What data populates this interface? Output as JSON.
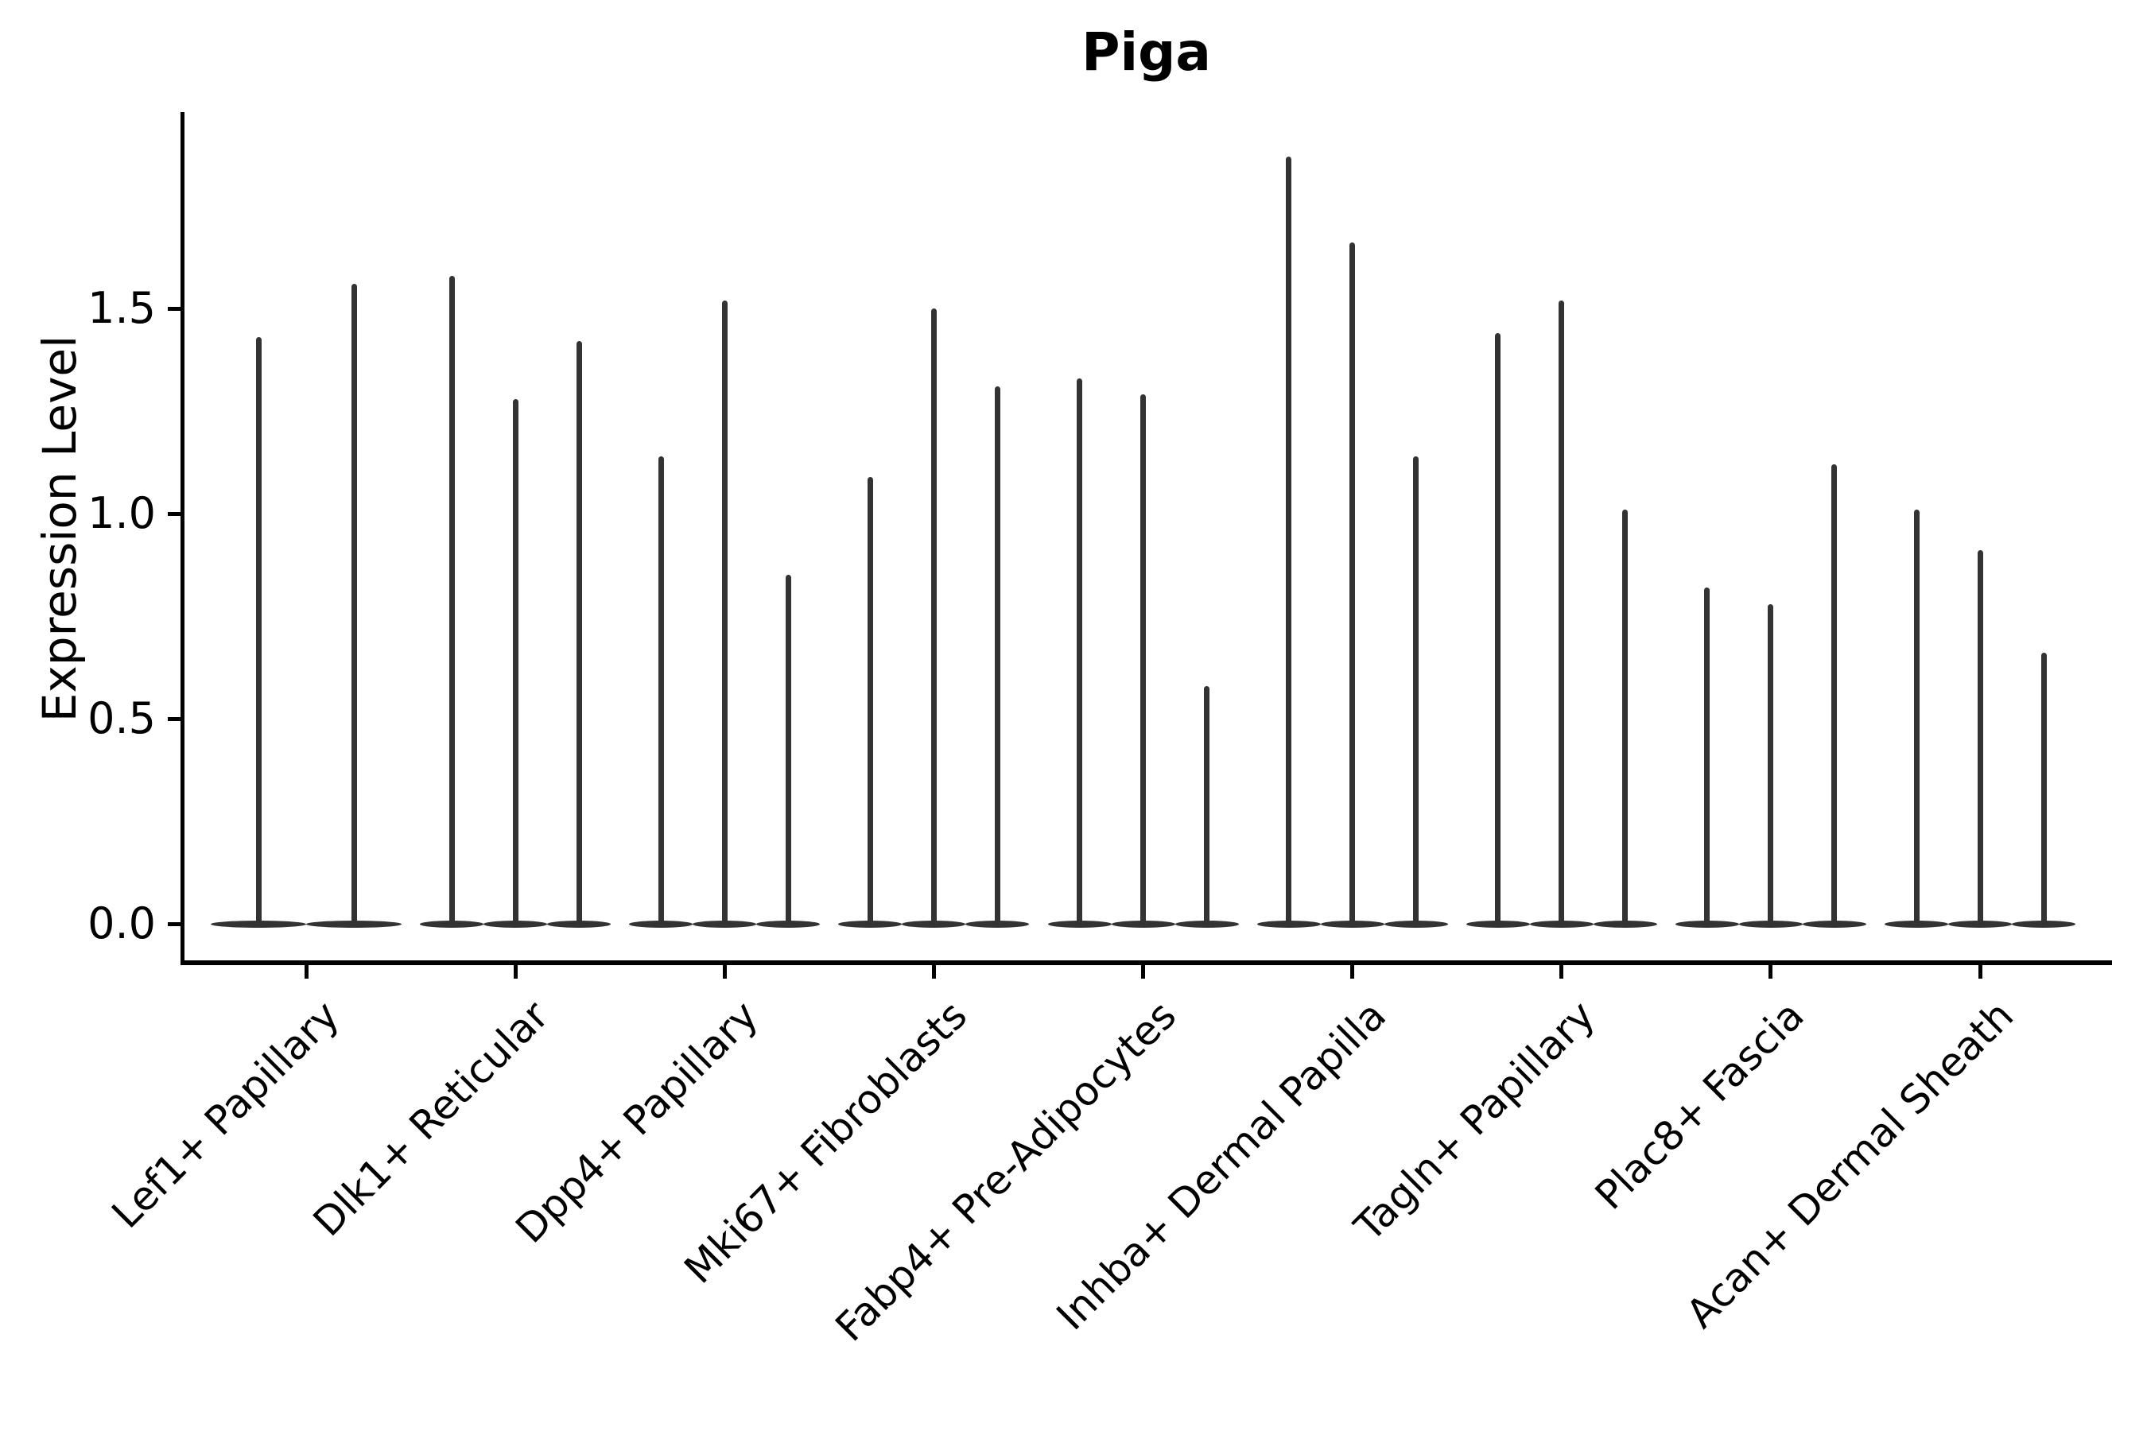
{
  "title": "Piga",
  "colors": {
    "violin": "#333333",
    "axis": "#000000",
    "text": "#000000",
    "background": "#ffffff"
  },
  "chart_data": {
    "type": "violin",
    "title": "Piga",
    "xlabel": "",
    "ylabel": "Expression Level",
    "ylim": [
      -0.09,
      1.98
    ],
    "yticks": [
      0.0,
      0.5,
      1.0,
      1.5
    ],
    "ytick_labels": [
      "0.0",
      "0.5",
      "1.0",
      "1.5"
    ],
    "xtick_rotation": 45,
    "grid": false,
    "legend": "none",
    "violin_style": "thin spike rising from a flat wide base at 0; distributions concentrated at 0",
    "categories": [
      "Lef1+ Papillary",
      "Dlk1+ Reticular",
      "Dpp4+ Papillary",
      "Mki67+ Fibroblasts",
      "Fabp4+ Pre-Adipocytes",
      "Inhba+ Dermal Papilla",
      "Tagln+ Papillary",
      "Plac8+ Fascia",
      "Acan+ Dermal Sheath"
    ],
    "groups": [
      {
        "category": "Lef1+ Papillary",
        "violin_max_values": [
          1.43,
          1.56
        ]
      },
      {
        "category": "Dlk1+ Reticular",
        "violin_max_values": [
          1.58,
          1.28,
          1.42
        ]
      },
      {
        "category": "Dpp4+ Papillary",
        "violin_max_values": [
          1.14,
          1.52,
          0.85
        ]
      },
      {
        "category": "Mki67+ Fibroblasts",
        "violin_max_values": [
          1.09,
          1.5,
          1.31
        ]
      },
      {
        "category": "Fabp4+ Pre-Adipocytes",
        "violin_max_values": [
          1.33,
          1.29,
          0.58
        ]
      },
      {
        "category": "Inhba+ Dermal Papilla",
        "violin_max_values": [
          1.87,
          1.66,
          1.14
        ]
      },
      {
        "category": "Tagln+ Papillary",
        "violin_max_values": [
          1.44,
          1.52,
          1.01
        ]
      },
      {
        "category": "Plac8+ Fascia",
        "violin_max_values": [
          0.82,
          0.78,
          1.12
        ]
      },
      {
        "category": "Acan+ Dermal Sheath",
        "violin_max_values": [
          1.01,
          0.91,
          0.66
        ]
      }
    ]
  }
}
